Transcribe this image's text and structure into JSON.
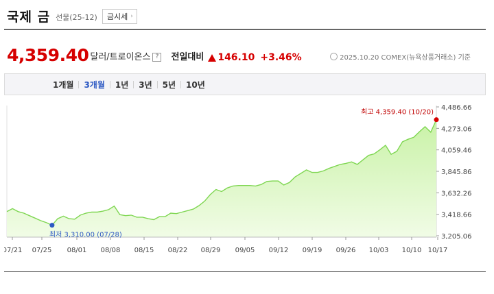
{
  "header": {
    "title": "국제 금",
    "subtitle": "선물(25-12)",
    "quote_button": "금시세",
    "quote_chevron": "›"
  },
  "price": {
    "value": "4,359.40",
    "unit": "달러/트로이온스",
    "help": "?",
    "change_label": "전일대비",
    "change": "146.10",
    "change_pct": "+3.46%",
    "date_info": "2025.10.20  COMEX(뉴욕상품거래소) 기준",
    "up_color": "#d60000"
  },
  "periods": [
    {
      "label": "1개월"
    },
    {
      "label": "3개월",
      "active": true
    },
    {
      "label": "1년"
    },
    {
      "label": "3년"
    },
    {
      "label": "5년"
    },
    {
      "label": "10년"
    }
  ],
  "chart_data": {
    "type": "area",
    "line_color": "#7ed651",
    "fill_color_top": "#c9f2a7",
    "fill_color_bottom": "#f1fce6",
    "max_marker_color": "#d60000",
    "min_marker_color": "#2d59c3",
    "ylim": [
      3205.06,
      4486.66
    ],
    "y_ticks": [
      "4,486.66",
      "4,273.06",
      "4,059.46",
      "3,845.86",
      "3,632.26",
      "3,418.66",
      "3,205.06"
    ],
    "x_ticks": [
      "07/21",
      "07/25",
      "08/01",
      "08/08",
      "08/15",
      "08/22",
      "08/29",
      "09/05",
      "09/12",
      "09/19",
      "09/26",
      "10/03",
      "10/10",
      "10/17"
    ],
    "max_label": "최고 4,359.40 (10/20)",
    "min_label": "최저 3,310.00 (07/28)",
    "values": [
      3445,
      3475,
      3445,
      3430,
      3405,
      3380,
      3355,
      3335,
      3310,
      3375,
      3400,
      3375,
      3370,
      3410,
      3430,
      3440,
      3440,
      3450,
      3465,
      3500,
      3415,
      3405,
      3410,
      3390,
      3390,
      3375,
      3365,
      3395,
      3395,
      3430,
      3425,
      3440,
      3455,
      3470,
      3505,
      3550,
      3615,
      3665,
      3645,
      3680,
      3700,
      3705,
      3705,
      3705,
      3700,
      3715,
      3745,
      3750,
      3750,
      3710,
      3735,
      3790,
      3825,
      3860,
      3835,
      3835,
      3850,
      3875,
      3895,
      3915,
      3925,
      3940,
      3915,
      3960,
      4005,
      4020,
      4060,
      4105,
      4015,
      4045,
      4140,
      4165,
      4185,
      4240,
      4290,
      4235,
      4359.4
    ]
  }
}
